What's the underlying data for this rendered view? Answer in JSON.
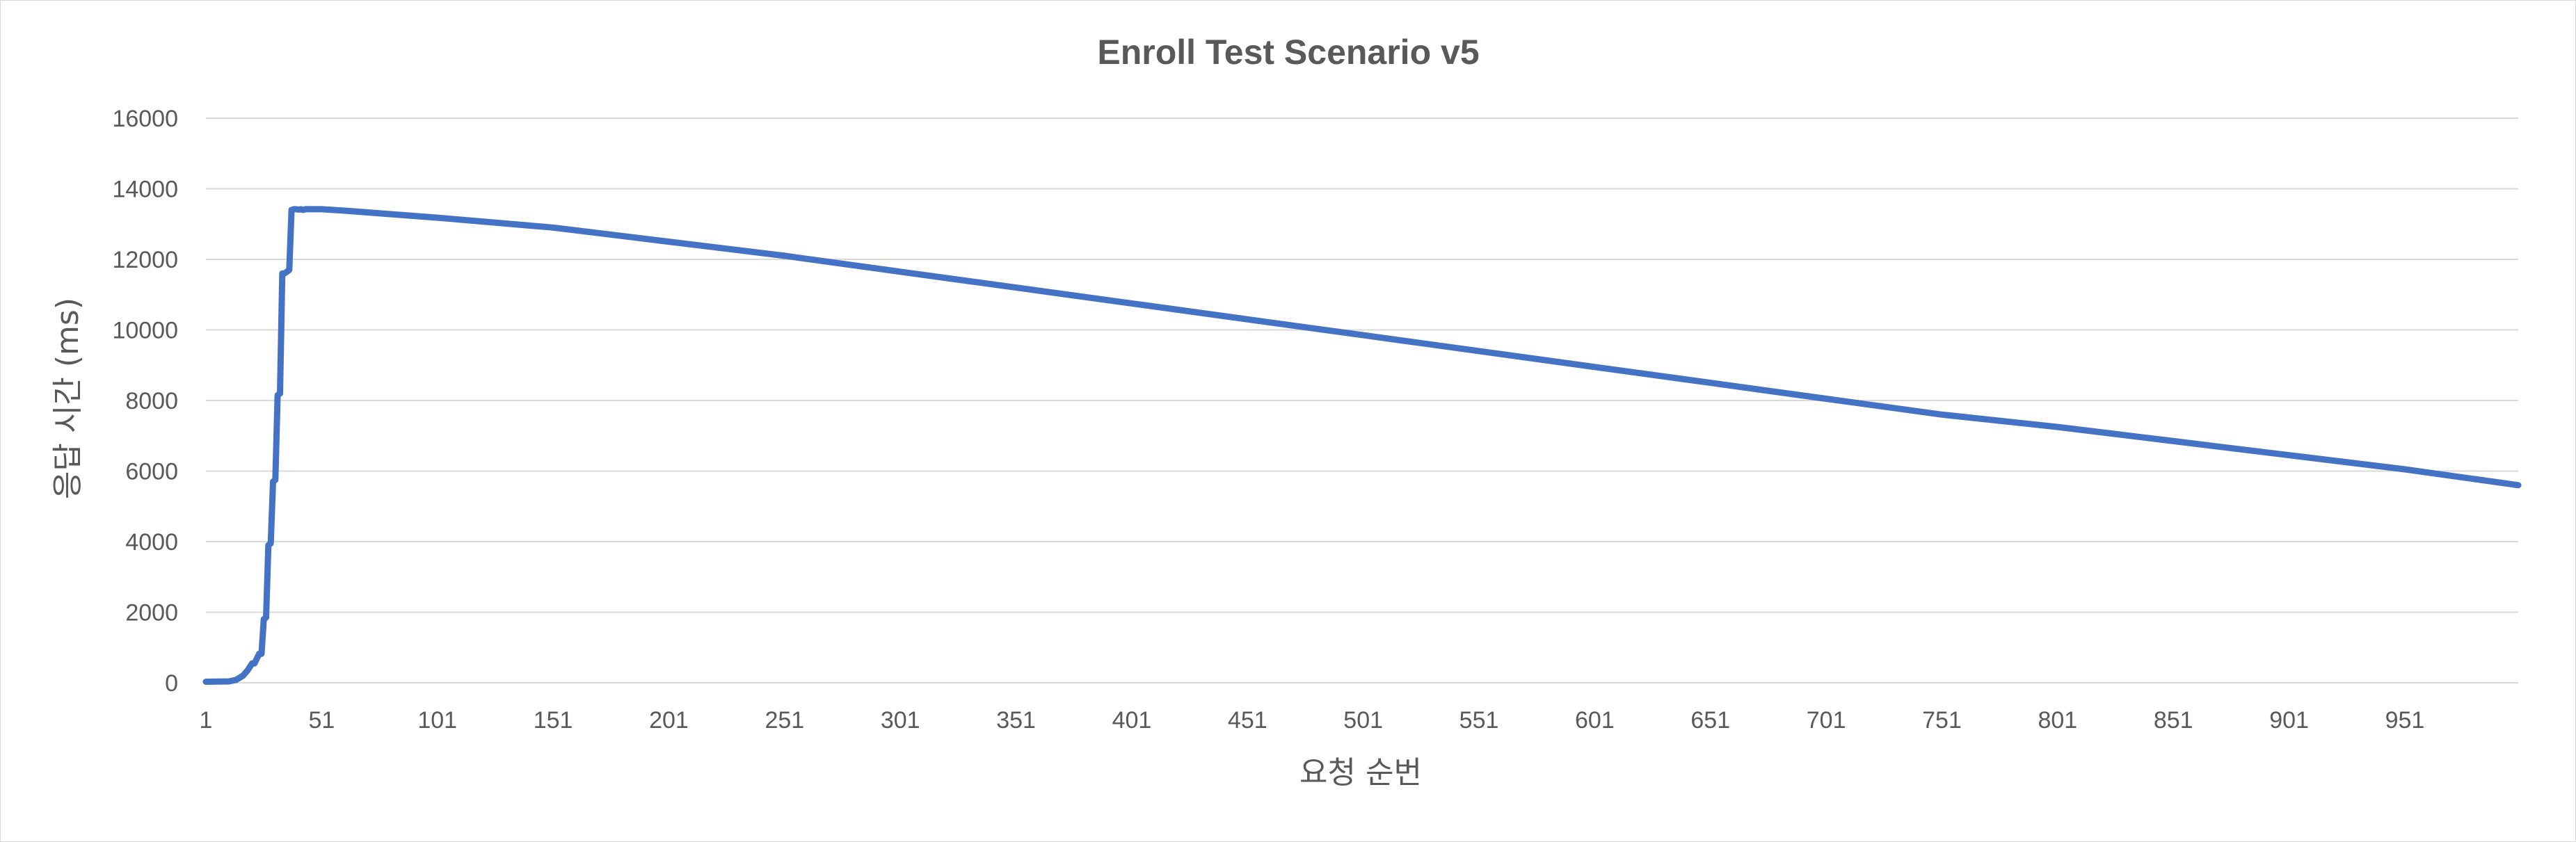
{
  "chart_data": {
    "type": "line",
    "title": "Enroll Test Scenario v5",
    "xlabel": "요청 순번",
    "ylabel": "응답 시간 (ms)",
    "xlim": [
      1,
      1000
    ],
    "ylim": [
      0,
      16000
    ],
    "y_ticks": [
      "0",
      "2000",
      "4000",
      "6000",
      "8000",
      "10000",
      "12000",
      "14000",
      "16000"
    ],
    "x_ticks": [
      "1",
      "51",
      "101",
      "151",
      "201",
      "251",
      "301",
      "351",
      "401",
      "451",
      "501",
      "551",
      "601",
      "651",
      "701",
      "751",
      "801",
      "851",
      "901",
      "951"
    ],
    "grid": true,
    "legend": "none",
    "series_color": "#4472c4",
    "series": [
      {
        "x": [
          1,
          11,
          14,
          17,
          19,
          21,
          22,
          24,
          25,
          26,
          27,
          28,
          29,
          30,
          31,
          32,
          33,
          34,
          35,
          36,
          37,
          38,
          39,
          40,
          41,
          42,
          43,
          44,
          51,
          61,
          101,
          151,
          201,
          251,
          301,
          351,
          401,
          451,
          501,
          551,
          601,
          651,
          701,
          751,
          801,
          851,
          901,
          951,
          1000
        ],
        "y": [
          30,
          40,
          80,
          200,
          350,
          550,
          550,
          820,
          820,
          1800,
          1850,
          3900,
          3950,
          5700,
          5750,
          8150,
          8200,
          11600,
          11600,
          11650,
          11700,
          13400,
          13420,
          13420,
          13410,
          13420,
          13400,
          13420,
          13420,
          13380,
          13180,
          12900,
          12500,
          12100,
          11650,
          11200,
          10750,
          10300,
          9850,
          9400,
          8950,
          8500,
          8050,
          7600,
          7250,
          6850,
          6450,
          6050,
          5600
        ]
      }
    ]
  }
}
